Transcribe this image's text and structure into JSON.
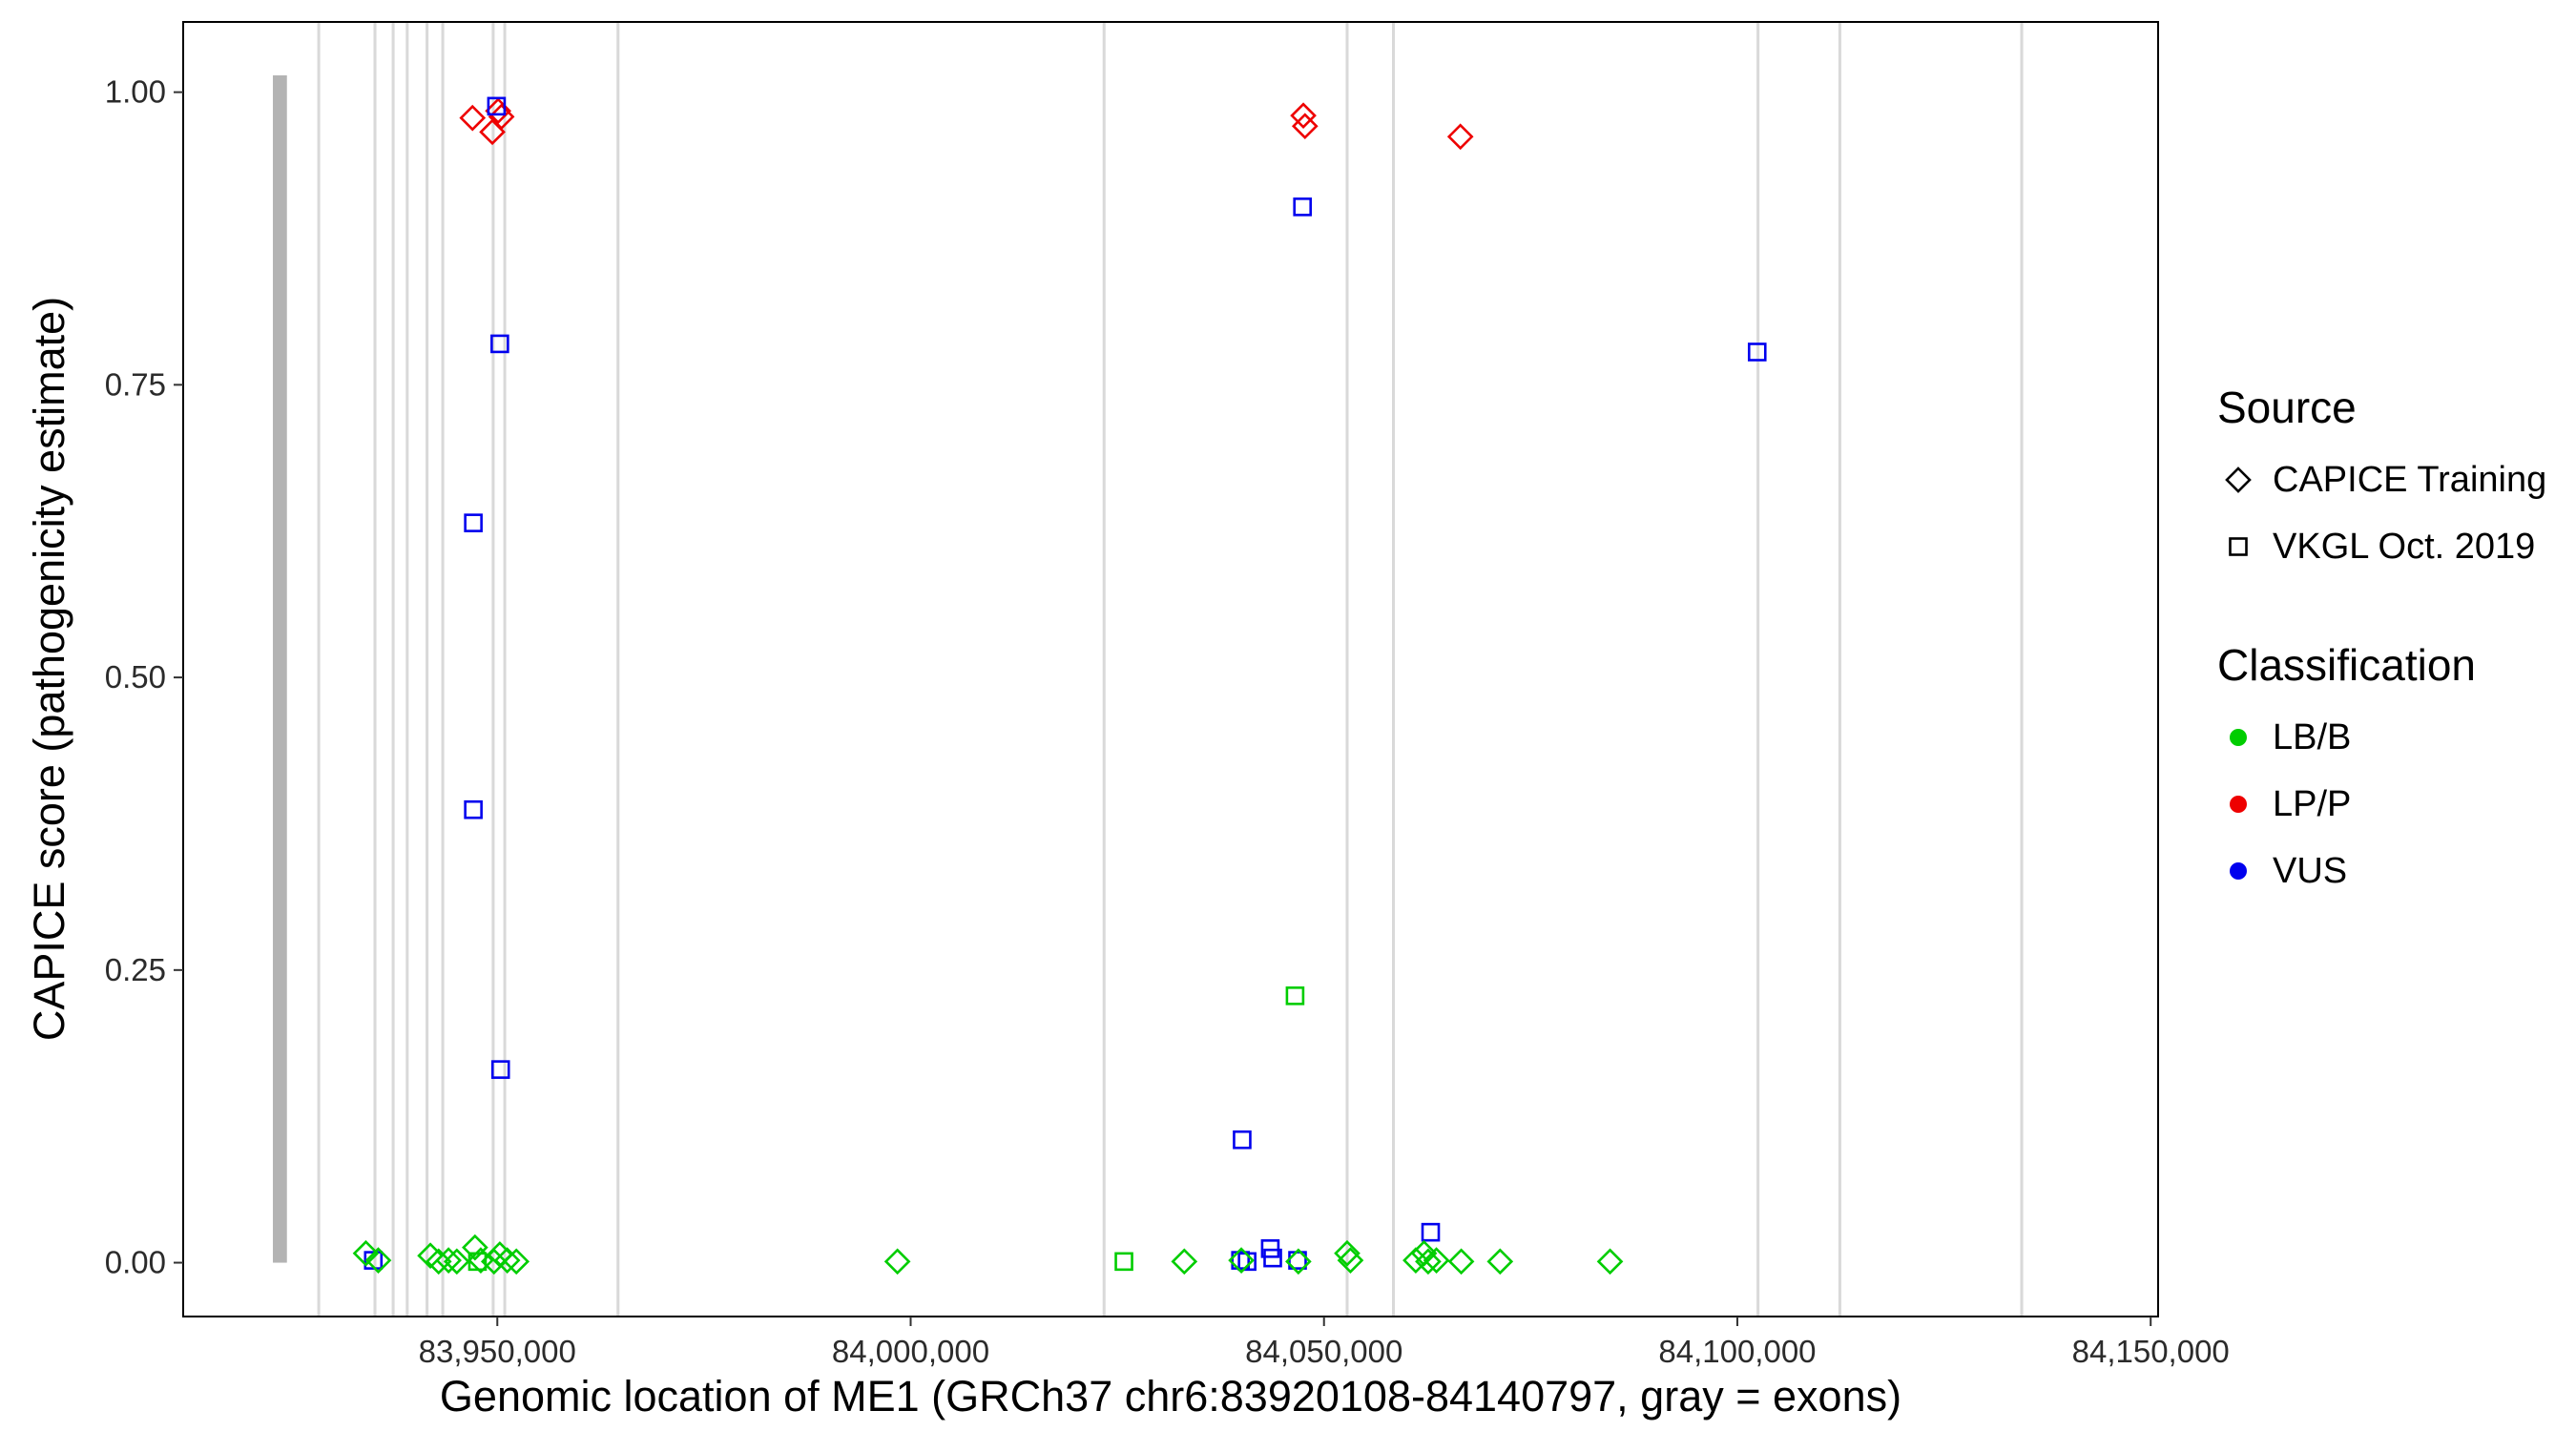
{
  "chart_data": {
    "type": "scatter",
    "title": "",
    "xlabel": "Genomic location of ME1 (GRCh37 chr6:83920108-84140797, gray = exons)",
    "ylabel": "CAPICE score (pathogenicity estimate)",
    "xlim": [
      83912000,
      84150900
    ],
    "ylim": [
      -0.046,
      1.06
    ],
    "x_ticks": [
      83950000,
      84000000,
      84050000,
      84100000,
      84150000
    ],
    "x_tick_labels": [
      "83,950,000",
      "84,000,000",
      "84,050,000",
      "84,100,000",
      "84,150,000"
    ],
    "y_ticks": [
      0,
      0.25,
      0.5,
      0.75,
      1
    ],
    "y_tick_labels": [
      "0.00",
      "0.25",
      "0.50",
      "0.75",
      "1.00"
    ],
    "grid": false,
    "legend_position": "right",
    "exons": [
      {
        "pos": 83923700,
        "width_bp": 1700,
        "thick": true
      },
      {
        "pos": 83928400,
        "width_bp": 350
      },
      {
        "pos": 83935200,
        "width_bp": 350
      },
      {
        "pos": 83937400,
        "width_bp": 350
      },
      {
        "pos": 83939100,
        "width_bp": 350
      },
      {
        "pos": 83941500,
        "width_bp": 350
      },
      {
        "pos": 83943400,
        "width_bp": 350
      },
      {
        "pos": 83949500,
        "width_bp": 350
      },
      {
        "pos": 83950900,
        "width_bp": 350
      },
      {
        "pos": 83964600,
        "width_bp": 350
      },
      {
        "pos": 84023400,
        "width_bp": 350
      },
      {
        "pos": 84052800,
        "width_bp": 350
      },
      {
        "pos": 84058400,
        "width_bp": 350
      },
      {
        "pos": 84102500,
        "width_bp": 350
      },
      {
        "pos": 84112400,
        "width_bp": 350
      },
      {
        "pos": 84134400,
        "width_bp": 350
      }
    ],
    "points": [
      {
        "x": 83947000,
        "y": 0.978,
        "source": "CAPICE Training",
        "classification": "LP/P"
      },
      {
        "x": 83949400,
        "y": 0.966,
        "source": "CAPICE Training",
        "classification": "LP/P"
      },
      {
        "x": 83950100,
        "y": 0.984,
        "source": "CAPICE Training",
        "classification": "LP/P"
      },
      {
        "x": 83950500,
        "y": 0.979,
        "source": "CAPICE Training",
        "classification": "LP/P"
      },
      {
        "x": 84047500,
        "y": 0.98,
        "source": "CAPICE Training",
        "classification": "LP/P"
      },
      {
        "x": 84047700,
        "y": 0.971,
        "source": "CAPICE Training",
        "classification": "LP/P"
      },
      {
        "x": 84066500,
        "y": 0.962,
        "source": "CAPICE Training",
        "classification": "LP/P"
      },
      {
        "x": 83949900,
        "y": 0.988,
        "source": "VKGL Oct. 2019",
        "classification": "VUS"
      },
      {
        "x": 83950300,
        "y": 0.785,
        "source": "VKGL Oct. 2019",
        "classification": "VUS"
      },
      {
        "x": 83947100,
        "y": 0.632,
        "source": "VKGL Oct. 2019",
        "classification": "VUS"
      },
      {
        "x": 83947100,
        "y": 0.387,
        "source": "VKGL Oct. 2019",
        "classification": "VUS"
      },
      {
        "x": 83950400,
        "y": 0.165,
        "source": "VKGL Oct. 2019",
        "classification": "VUS"
      },
      {
        "x": 84047400,
        "y": 0.902,
        "source": "VKGL Oct. 2019",
        "classification": "VUS"
      },
      {
        "x": 84040100,
        "y": 0.105,
        "source": "VKGL Oct. 2019",
        "classification": "VUS"
      },
      {
        "x": 84062900,
        "y": 0.026,
        "source": "VKGL Oct. 2019",
        "classification": "VUS"
      },
      {
        "x": 84102400,
        "y": 0.778,
        "source": "VKGL Oct. 2019",
        "classification": "VUS"
      },
      {
        "x": 83935000,
        "y": 0.002,
        "source": "VKGL Oct. 2019",
        "classification": "VUS"
      },
      {
        "x": 84039900,
        "y": 0.002,
        "source": "VKGL Oct. 2019",
        "classification": "VUS"
      },
      {
        "x": 84040700,
        "y": 0.001,
        "source": "VKGL Oct. 2019",
        "classification": "VUS"
      },
      {
        "x": 84043500,
        "y": 0.012,
        "source": "VKGL Oct. 2019",
        "classification": "VUS"
      },
      {
        "x": 84043800,
        "y": 0.004,
        "source": "VKGL Oct. 2019",
        "classification": "VUS"
      },
      {
        "x": 84046800,
        "y": 0.002,
        "source": "VKGL Oct. 2019",
        "classification": "VUS"
      },
      {
        "x": 83947600,
        "y": 0.001,
        "source": "VKGL Oct. 2019",
        "classification": "LB/B"
      },
      {
        "x": 84025800,
        "y": 0.001,
        "source": "VKGL Oct. 2019",
        "classification": "LB/B"
      },
      {
        "x": 84046500,
        "y": 0.228,
        "source": "VKGL Oct. 2019",
        "classification": "LB/B"
      },
      {
        "x": 83934100,
        "y": 0.008,
        "source": "CAPICE Training",
        "classification": "LB/B"
      },
      {
        "x": 83935600,
        "y": 0.002,
        "source": "CAPICE Training",
        "classification": "LB/B"
      },
      {
        "x": 83941900,
        "y": 0.006,
        "source": "CAPICE Training",
        "classification": "LB/B"
      },
      {
        "x": 83942900,
        "y": 0.001,
        "source": "CAPICE Training",
        "classification": "LB/B"
      },
      {
        "x": 83944100,
        "y": 0.002,
        "source": "CAPICE Training",
        "classification": "LB/B"
      },
      {
        "x": 83945100,
        "y": 0.001,
        "source": "CAPICE Training",
        "classification": "LB/B"
      },
      {
        "x": 83947300,
        "y": 0.013,
        "source": "CAPICE Training",
        "classification": "LB/B"
      },
      {
        "x": 83948000,
        "y": 0.002,
        "source": "CAPICE Training",
        "classification": "LB/B"
      },
      {
        "x": 83949600,
        "y": 0.001,
        "source": "CAPICE Training",
        "classification": "LB/B"
      },
      {
        "x": 83950300,
        "y": 0.007,
        "source": "CAPICE Training",
        "classification": "LB/B"
      },
      {
        "x": 83951200,
        "y": 0.002,
        "source": "CAPICE Training",
        "classification": "LB/B"
      },
      {
        "x": 83952300,
        "y": 0.001,
        "source": "CAPICE Training",
        "classification": "LB/B"
      },
      {
        "x": 83998400,
        "y": 0.001,
        "source": "CAPICE Training",
        "classification": "LB/B"
      },
      {
        "x": 84033100,
        "y": 0.001,
        "source": "CAPICE Training",
        "classification": "LB/B"
      },
      {
        "x": 84040000,
        "y": 0.002,
        "source": "CAPICE Training",
        "classification": "LB/B"
      },
      {
        "x": 84046900,
        "y": 0.001,
        "source": "CAPICE Training",
        "classification": "LB/B"
      },
      {
        "x": 84052800,
        "y": 0.008,
        "source": "CAPICE Training",
        "classification": "LB/B"
      },
      {
        "x": 84053200,
        "y": 0.002,
        "source": "CAPICE Training",
        "classification": "LB/B"
      },
      {
        "x": 84061100,
        "y": 0.002,
        "source": "CAPICE Training",
        "classification": "LB/B"
      },
      {
        "x": 84062100,
        "y": 0.008,
        "source": "CAPICE Training",
        "classification": "LB/B"
      },
      {
        "x": 84062600,
        "y": 0.001,
        "source": "CAPICE Training",
        "classification": "LB/B"
      },
      {
        "x": 84063600,
        "y": 0.002,
        "source": "CAPICE Training",
        "classification": "LB/B"
      },
      {
        "x": 84066600,
        "y": 0.001,
        "source": "CAPICE Training",
        "classification": "LB/B"
      },
      {
        "x": 84071300,
        "y": 0.001,
        "source": "CAPICE Training",
        "classification": "LB/B"
      },
      {
        "x": 84084600,
        "y": 0.001,
        "source": "CAPICE Training",
        "classification": "LB/B"
      }
    ]
  },
  "legend": {
    "source": {
      "title": "Source",
      "items": [
        {
          "label": "CAPICE Training",
          "shape": "diamond"
        },
        {
          "label": "VKGL Oct. 2019",
          "shape": "square"
        }
      ]
    },
    "classification": {
      "title": "Classification",
      "items": [
        {
          "label": "LB/B",
          "color": "#00CD00"
        },
        {
          "label": "LP/P",
          "color": "#EE0000"
        },
        {
          "label": "VUS",
          "color": "#0000EE"
        }
      ]
    }
  },
  "colors": {
    "LB/B": "#00CD00",
    "LP/P": "#EE0000",
    "VUS": "#0000EE",
    "axis": "#000000",
    "tick": "#333333",
    "exon_thick": "#B3B3B3",
    "exon_thin": "#D9D9D9"
  }
}
